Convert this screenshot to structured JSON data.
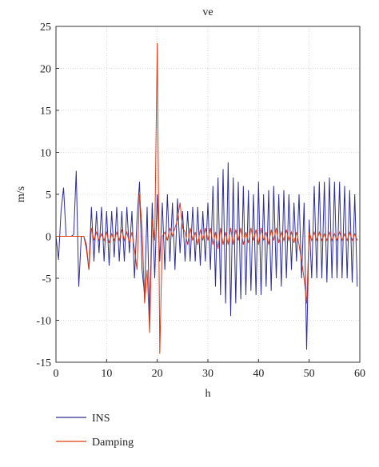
{
  "chart_data": {
    "type": "line",
    "title": "ve",
    "x_label": "h",
    "y_label": "m/s",
    "x": [
      0,
      0.5,
      1,
      1.5,
      2,
      2.5,
      3,
      3.5,
      4,
      4.5,
      5,
      5.5,
      6,
      6.5,
      7,
      7.5,
      8,
      8.5,
      9,
      9.5,
      10,
      10.5,
      11,
      11.5,
      12,
      12.5,
      13,
      13.5,
      14,
      14.5,
      15,
      15.5,
      16,
      16.5,
      17,
      17.5,
      18,
      18.5,
      19,
      19.5,
      20,
      20.5,
      21,
      21.5,
      22,
      22.5,
      23,
      23.5,
      24,
      24.5,
      25,
      25.5,
      26,
      26.5,
      27,
      27.5,
      28,
      28.5,
      29,
      29.5,
      30,
      30.5,
      31,
      31.5,
      32,
      32.5,
      33,
      33.5,
      34,
      34.5,
      35,
      35.5,
      36,
      36.5,
      37,
      37.5,
      38,
      38.5,
      39,
      39.5,
      40,
      40.5,
      41,
      41.5,
      42,
      42.5,
      43,
      43.5,
      44,
      44.5,
      45,
      45.5,
      46,
      46.5,
      47,
      47.5,
      48,
      48.5,
      49,
      49.5,
      50,
      50.5,
      51,
      51.5,
      52,
      52.5,
      53,
      53.5,
      54,
      54.5,
      55,
      55.5,
      56,
      56.5,
      57,
      57.5,
      58,
      58.5,
      59,
      59.5
    ],
    "series": [
      {
        "name": "INS",
        "color": "#2e2e92",
        "values": [
          0,
          -2.8,
          3,
          5.8,
          0,
          0,
          0,
          0.2,
          7.8,
          -6,
          0,
          0,
          -1,
          -4,
          3.5,
          -3,
          3,
          -2,
          3.5,
          -3,
          3,
          -3.5,
          3,
          -2.5,
          3.5,
          -3,
          3,
          -3,
          3.5,
          -2,
          3,
          -5,
          2,
          6.5,
          -4,
          -7,
          3.5,
          -10,
          4,
          -5,
          5,
          -3,
          4,
          -4,
          5,
          -3,
          4,
          -4,
          4.5,
          -2,
          3,
          -3,
          3,
          -3,
          3.5,
          -3,
          3.5,
          -3.5,
          3,
          -3,
          4,
          -4,
          6,
          -6,
          7,
          -7,
          8,
          -8,
          8.8,
          -9.5,
          7,
          -8,
          6.5,
          -7.5,
          6,
          -7,
          5.5,
          -6.5,
          5,
          -7,
          6.5,
          -7,
          5,
          -6,
          5.5,
          -6.5,
          6,
          -5,
          5,
          -6,
          5.5,
          -5,
          5,
          -4,
          4,
          -3,
          5,
          -5,
          4,
          -13.5,
          2,
          -5,
          6,
          -5,
          6.5,
          -5,
          6.5,
          -5.5,
          7,
          -5,
          6.5,
          -5,
          6.5,
          -5,
          6,
          -5,
          5.5,
          -5.5,
          5,
          -6
        ]
      },
      {
        "name": "Damping",
        "color": "#dd3a14",
        "values": [
          0,
          0,
          0,
          0,
          0,
          0,
          0,
          0,
          0,
          0,
          0,
          0,
          -1.5,
          -4,
          1,
          -0.5,
          0.5,
          -0.5,
          0.3,
          -0.5,
          0.5,
          -0.8,
          0.3,
          -0.5,
          0.5,
          -0.5,
          0.8,
          -0.5,
          0.5,
          -0.8,
          0.5,
          -1.5,
          -4,
          5,
          1,
          -8,
          -4,
          -11.5,
          2,
          -0.5,
          23,
          -14,
          0,
          0.5,
          -0.5,
          1,
          0,
          1,
          2,
          4,
          1,
          0.5,
          -1,
          1,
          -0.5,
          0.5,
          -1,
          0.8,
          -0.5,
          1,
          -0.5,
          1,
          -1,
          0.5,
          -1.5,
          1,
          -1,
          0.5,
          -1,
          1,
          -1,
          0.8,
          -0.5,
          1,
          -1,
          0.5,
          -0.8,
          1,
          -0.5,
          0.8,
          -1,
          1,
          -0.5,
          0.5,
          -1,
          0.8,
          -0.5,
          1,
          -0.8,
          0.5,
          -0.5,
          0.8,
          -0.5,
          0.5,
          -0.8,
          0.5,
          -1,
          -3,
          -5,
          -8,
          0.5,
          -0.5,
          0.5,
          -0.5,
          0.5,
          -0.5,
          0.3,
          -0.5,
          0.5,
          -0.5,
          0.3,
          -0.5,
          0.5,
          -0.5,
          0.3,
          -0.5,
          0.5,
          -0.5,
          0.3,
          -0.5
        ]
      }
    ],
    "xlim": [
      0,
      60
    ],
    "xticks": [
      0,
      10,
      20,
      30,
      40,
      50,
      60
    ],
    "ylim": [
      -15,
      25
    ],
    "yticks": [
      -15,
      -10,
      -5,
      0,
      5,
      10,
      15,
      20,
      25
    ],
    "grid": true,
    "legend": "bottom"
  }
}
